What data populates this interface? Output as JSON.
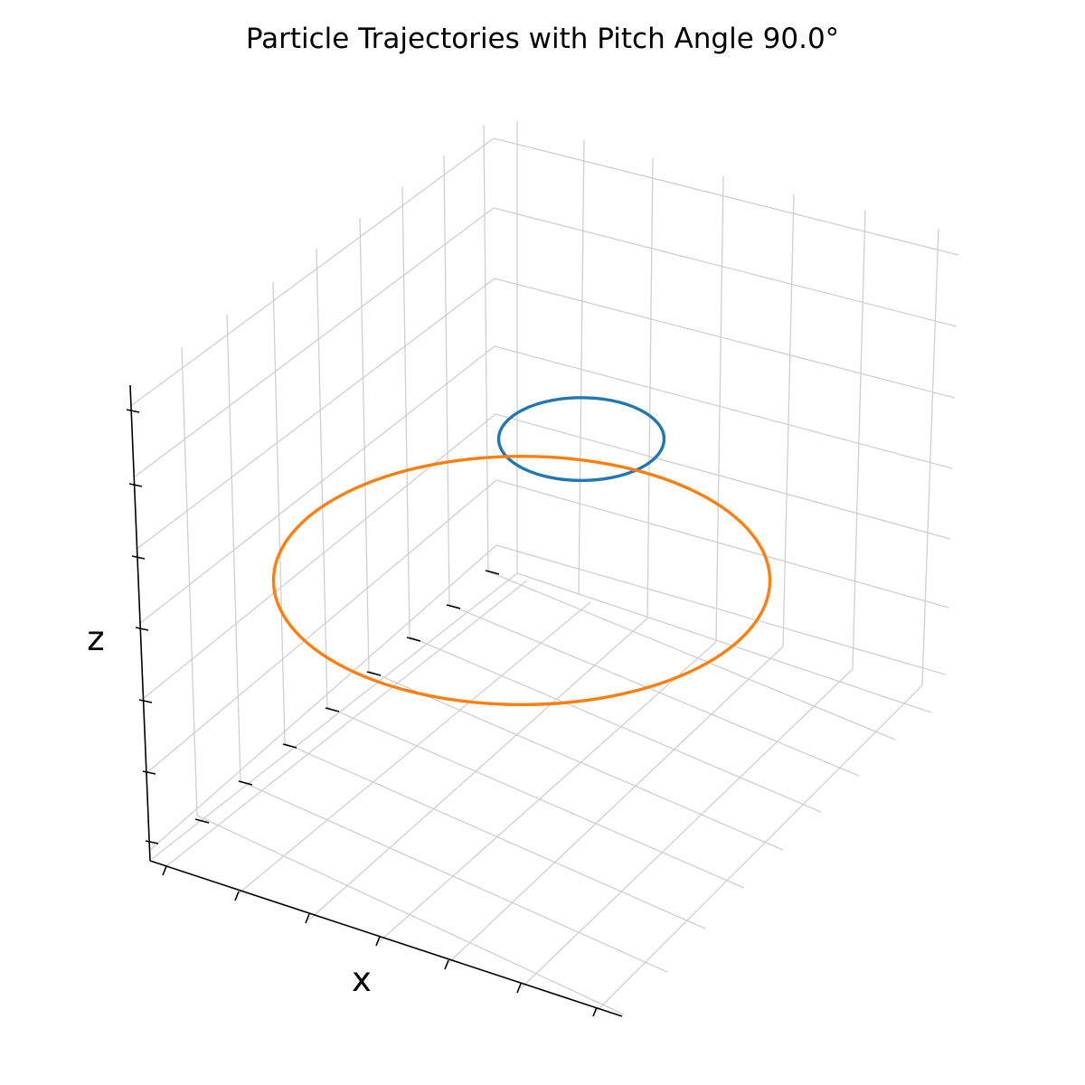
{
  "chart_data": {
    "type": "line3d",
    "title": "Particle Trajectories with Pitch Angle 90.0°",
    "xlabel": "x",
    "ylabel": "",
    "zlabel": "z",
    "grid": true,
    "tick_labels_visible": false,
    "series": [
      {
        "shape": "circle",
        "color": "#1f77b4",
        "center": [
          0.65,
          0.5,
          0.72
        ],
        "radius": 0.15
      },
      {
        "shape": "circle",
        "color": "#ff7f0e",
        "center": [
          0.5,
          0.5,
          0.55
        ],
        "radius": 0.45
      }
    ]
  }
}
